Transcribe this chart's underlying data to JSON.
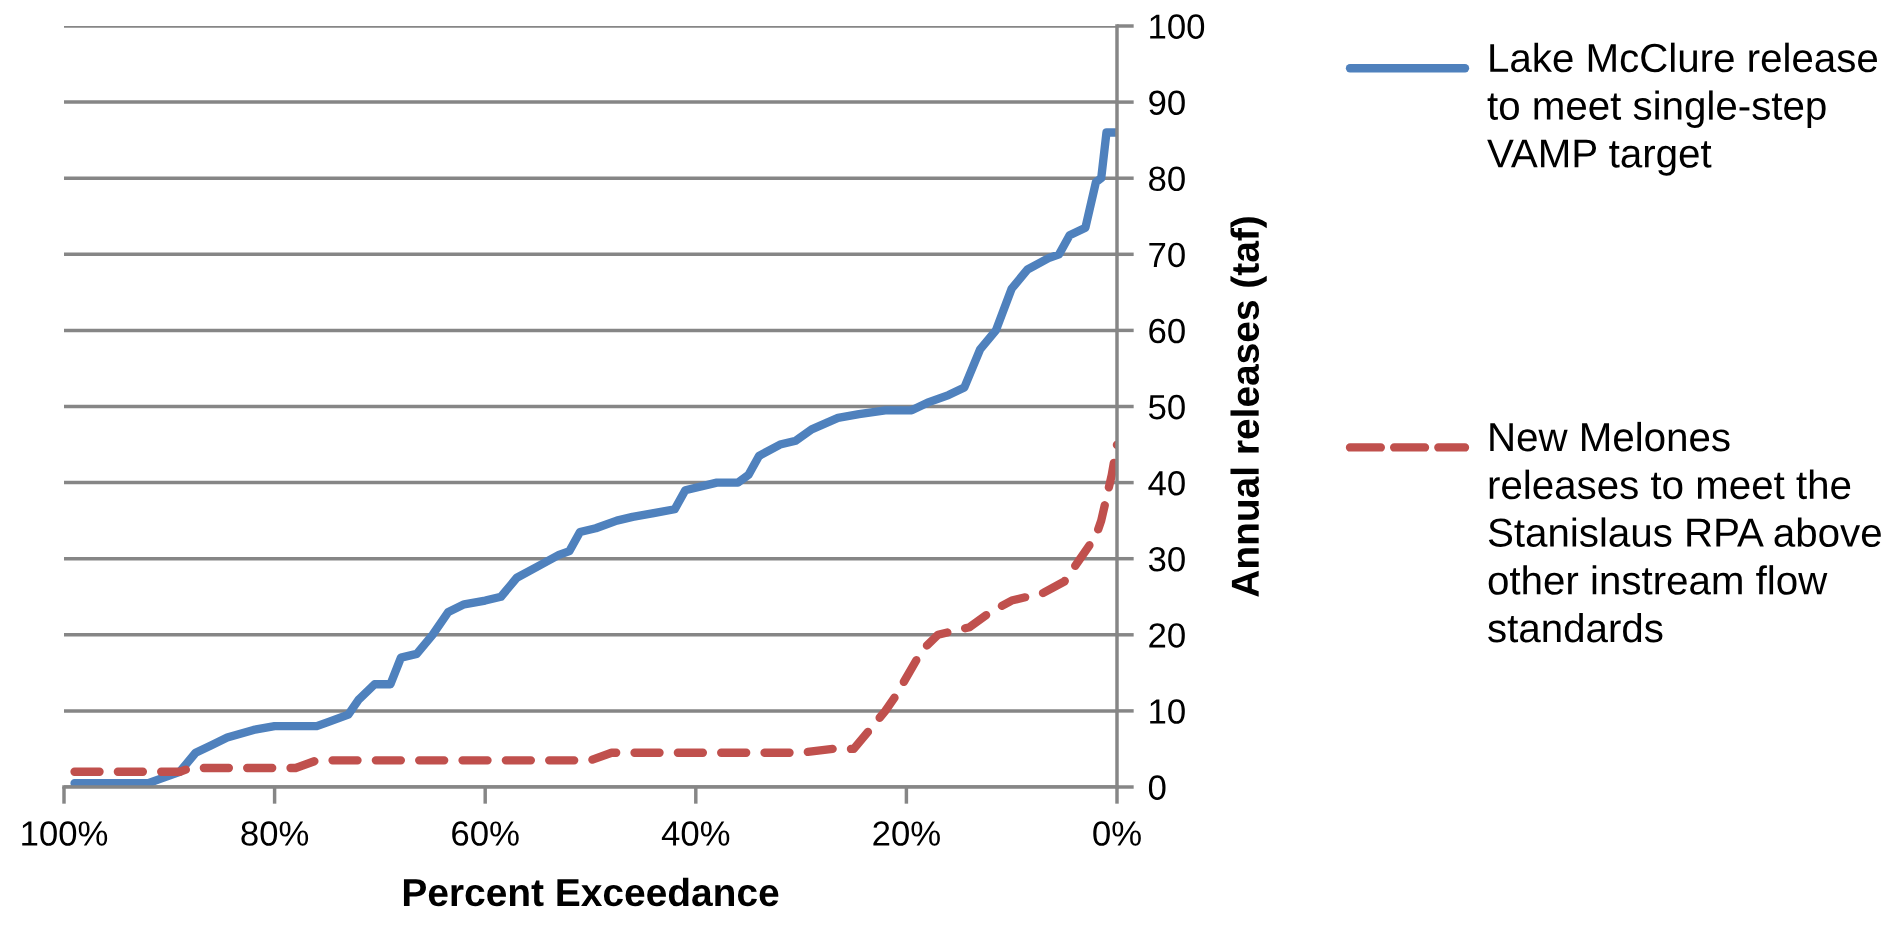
{
  "chart_data": {
    "type": "line",
    "xlabel": "Percent Exceedance",
    "ylabel": "Annual releases (taf)",
    "xlim": [
      100,
      0
    ],
    "xticks": [
      {
        "value": 100,
        "label": "100%"
      },
      {
        "value": 80,
        "label": "80%"
      },
      {
        "value": 60,
        "label": "60%"
      },
      {
        "value": 40,
        "label": "40%"
      },
      {
        "value": 20,
        "label": "20%"
      },
      {
        "value": 0,
        "label": "0%"
      }
    ],
    "ylim": [
      0,
      100
    ],
    "yticks": [
      0,
      10,
      20,
      30,
      40,
      50,
      60,
      70,
      80,
      90,
      100
    ],
    "grid": "y",
    "legend": "right",
    "marker": "none",
    "series": [
      {
        "name": "Lake McClure release to meet single-step VAMP target",
        "color": "#4f81bd",
        "line_style": "solid",
        "x": [
          99,
          92,
          91,
          89,
          87.5,
          86,
          84.5,
          82,
          80,
          76,
          75,
          73,
          72,
          70.5,
          69,
          68,
          66.5,
          65,
          63.5,
          62,
          60,
          58.5,
          57,
          55,
          53,
          52,
          51,
          49.5,
          47.5,
          46,
          44,
          42,
          41,
          38,
          36,
          35,
          34,
          32,
          30.5,
          29,
          26.5,
          24.5,
          22,
          19.5,
          18,
          16,
          14.5,
          13,
          11.5,
          10,
          8.5,
          6.5,
          5.5,
          4.5,
          3,
          2,
          1.5,
          1,
          0
        ],
        "values": [
          0.5,
          0.5,
          1,
          2,
          4.5,
          5.5,
          6.5,
          7.5,
          8,
          8,
          8.5,
          9.5,
          11.5,
          13.5,
          13.5,
          17,
          17.5,
          20,
          23,
          24,
          24.5,
          25,
          27.5,
          29,
          30.5,
          31,
          33.5,
          34,
          35,
          35.5,
          36,
          36.5,
          39,
          40,
          40,
          41,
          43.5,
          45,
          45.5,
          47,
          48.5,
          49,
          49.5,
          49.5,
          50.5,
          51.5,
          52.5,
          57.5,
          60,
          65.5,
          68,
          69.5,
          70,
          72.5,
          73.5,
          79.5,
          80,
          86,
          86
        ]
      },
      {
        "name": "New Melones releases to meet the Stanislaus RPA above other instream flow standards",
        "color": "#c0504d",
        "line_style": "dashed",
        "x": [
          99,
          89,
          88,
          80,
          78,
          76,
          70,
          50,
          48,
          30,
          27,
          25,
          22,
          21,
          18.5,
          17,
          14,
          12,
          10,
          7,
          5,
          4,
          2,
          1.5,
          0.5,
          0
        ],
        "values": [
          2,
          2,
          2.5,
          2.5,
          2.5,
          3.5,
          3.5,
          3.5,
          4.5,
          4.5,
          5,
          5,
          10,
          12,
          18,
          20,
          21,
          23,
          24.5,
          25.5,
          27,
          29,
          33,
          35,
          41,
          45
        ]
      }
    ]
  }
}
